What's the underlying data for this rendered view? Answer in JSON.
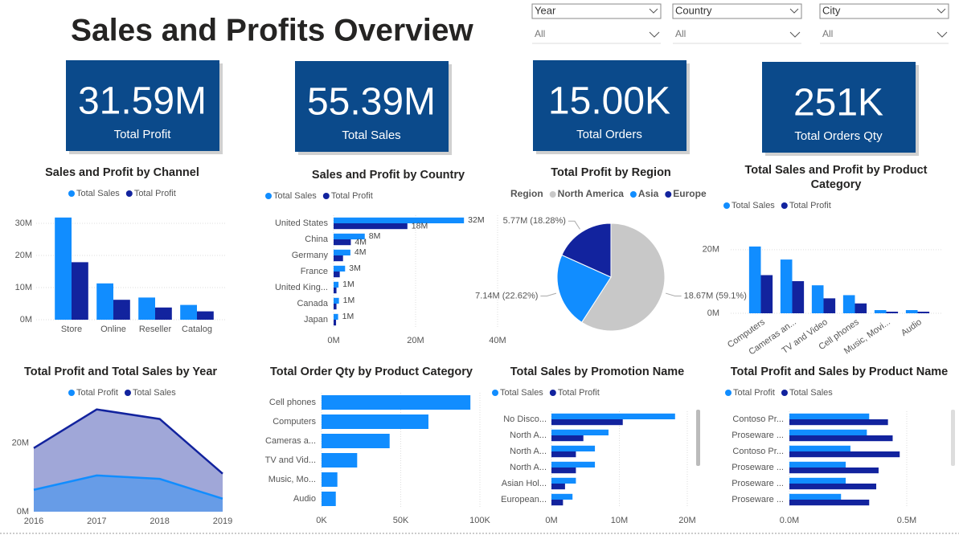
{
  "header": {
    "title": "Sales and Profits Overview"
  },
  "slicers": [
    {
      "title": "Year",
      "value": "All"
    },
    {
      "title": "Country",
      "value": "All"
    },
    {
      "title": "City",
      "value": "All"
    }
  ],
  "cards": [
    {
      "value": "31.59M",
      "label": "Total Profit"
    },
    {
      "value": "55.39M",
      "label": "Total Sales"
    },
    {
      "value": "15.00K",
      "label": "Total Orders"
    },
    {
      "value": "251K",
      "label": "Total Orders Qty"
    }
  ],
  "chart_data": [
    {
      "type": "bar",
      "orientation": "vertical",
      "title": "Sales and Profit by Channel",
      "categories": [
        "Store",
        "Online",
        "Reseller",
        "Catalog"
      ],
      "series": [
        {
          "name": "Total Sales",
          "color": "#118dff",
          "values": [
            31.8,
            11.3,
            6.9,
            4.6
          ]
        },
        {
          "name": "Total Profit",
          "color": "#12239e",
          "values": [
            17.9,
            6.2,
            3.8,
            2.6
          ]
        }
      ],
      "ylim": [
        0,
        34
      ],
      "yticks": [
        {
          "value": 0,
          "label": "0M"
        },
        {
          "value": 10,
          "label": "10M"
        },
        {
          "value": 20,
          "label": "20M"
        },
        {
          "value": 30,
          "label": "30M"
        }
      ],
      "grid": true
    },
    {
      "type": "bar",
      "orientation": "horizontal",
      "title": "Sales and Profit by Country",
      "categories": [
        "United States",
        "China",
        "Germany",
        "France",
        "United King...",
        "Canada",
        "Japan"
      ],
      "series": [
        {
          "name": "Total Sales",
          "color": "#118dff",
          "values": [
            31.8,
            7.6,
            4.1,
            2.8,
            1.2,
            1.3,
            1.1
          ],
          "value_labels": [
            "32M",
            "8M",
            "4M",
            "3M",
            "1M",
            "1M",
            "1M"
          ]
        },
        {
          "name": "Total Profit",
          "color": "#12239e",
          "values": [
            18.0,
            4.2,
            2.3,
            1.5,
            0.7,
            0.7,
            0.6
          ],
          "value_labels": [
            "18M",
            "4M",
            null,
            null,
            null,
            null,
            null
          ]
        }
      ],
      "xlim": [
        0,
        40
      ],
      "xticks": [
        {
          "value": 0,
          "label": "0M"
        },
        {
          "value": 20,
          "label": "20M"
        },
        {
          "value": 40,
          "label": "40M"
        }
      ],
      "grid": true
    },
    {
      "type": "pie",
      "title": "Total Profit by Region",
      "legend_title": "Region",
      "categories": [
        "North America",
        "Asia",
        "Europe"
      ],
      "values": [
        18.67,
        7.14,
        5.77
      ],
      "value_labels": [
        "18.67M (59.1%)",
        "7.14M (22.62%)",
        "5.77M (18.28%)"
      ],
      "colors": [
        "#c8c8c8",
        "#118dff",
        "#12239e"
      ]
    },
    {
      "type": "bar",
      "orientation": "vertical",
      "title": "Total Sales and Profit by Product Category",
      "categories": [
        "Computers",
        "Cameras an...",
        "TV and Video",
        "Cell phones",
        "Music, Movi...",
        "Audio"
      ],
      "series": [
        {
          "name": "Total Sales",
          "color": "#118dff",
          "values": [
            21.0,
            16.9,
            8.8,
            5.7,
            1.0,
            1.0
          ]
        },
        {
          "name": "Total Profit",
          "color": "#12239e",
          "values": [
            12.0,
            10.1,
            4.7,
            3.1,
            0.5,
            0.5
          ]
        }
      ],
      "ylim": [
        0,
        24
      ],
      "yticks": [
        {
          "value": 0,
          "label": "0M"
        },
        {
          "value": 20,
          "label": "20M"
        }
      ],
      "grid": true
    },
    {
      "type": "area",
      "title": "Total Profit and Total Sales by Year",
      "x": [
        2016,
        2017,
        2018,
        2019
      ],
      "series": [
        {
          "name": "Total Profit",
          "color": "#118dff",
          "values": [
            6.4,
            10.6,
            9.6,
            3.8
          ]
        },
        {
          "name": "Total Sales",
          "color": "#12239e",
          "values": [
            18.6,
            29.9,
            27.1,
            11.1
          ]
        }
      ],
      "xlim": [
        2016,
        2019
      ],
      "xticks": [
        2016,
        2017,
        2018,
        2019
      ],
      "ylim": [
        0,
        31
      ],
      "yticks": [
        {
          "value": 0,
          "label": "0M"
        },
        {
          "value": 20,
          "label": "20M"
        }
      ]
    },
    {
      "type": "bar",
      "orientation": "horizontal",
      "title": "Total Order Qty by Product Category",
      "categories": [
        "Cell phones",
        "Computers",
        "Cameras a...",
        "TV and Vid...",
        "Music, Mo...",
        "Audio"
      ],
      "values": [
        94,
        67.5,
        43,
        22.5,
        10,
        9
      ],
      "color": "#118dff",
      "xlim": [
        0,
        100
      ],
      "xticks": [
        {
          "value": 0,
          "label": "0K"
        },
        {
          "value": 50,
          "label": "50K"
        },
        {
          "value": 100,
          "label": "100K"
        }
      ],
      "grid": true
    },
    {
      "type": "bar",
      "orientation": "horizontal",
      "title": "Total Sales by Promotion Name",
      "categories": [
        "No Disco...",
        "North A...",
        "North A...",
        "North A...",
        "Asian Hol...",
        "European..."
      ],
      "series": [
        {
          "name": "Total Sales",
          "color": "#118dff",
          "values": [
            18.2,
            8.4,
            6.4,
            6.4,
            3.6,
            3.1
          ]
        },
        {
          "name": "Total Profit",
          "color": "#12239e",
          "values": [
            10.5,
            4.7,
            3.6,
            3.6,
            2.0,
            1.7
          ]
        }
      ],
      "xlim": [
        0,
        20
      ],
      "xticks": [
        {
          "value": 0,
          "label": "0M"
        },
        {
          "value": 10,
          "label": "10M"
        },
        {
          "value": 20,
          "label": "20M"
        }
      ],
      "grid": true
    },
    {
      "type": "bar",
      "orientation": "horizontal",
      "title": "Total Profit and Sales by Product Name",
      "categories": [
        "Contoso Pr...",
        "Proseware ...",
        "Contoso Pr...",
        "Proseware ...",
        "Proseware ...",
        "Proseware ..."
      ],
      "series": [
        {
          "name": "Total Profit",
          "color": "#118dff",
          "values": [
            0.34,
            0.33,
            0.26,
            0.24,
            0.24,
            0.22
          ]
        },
        {
          "name": "Total  Sales",
          "color": "#12239e",
          "values": [
            0.42,
            0.44,
            0.47,
            0.38,
            0.37,
            0.34
          ]
        }
      ],
      "xlim": [
        0,
        0.5
      ],
      "xticks": [
        {
          "value": 0,
          "label": "0.0M"
        },
        {
          "value": 0.5,
          "label": "0.5M"
        }
      ],
      "grid": true
    }
  ]
}
